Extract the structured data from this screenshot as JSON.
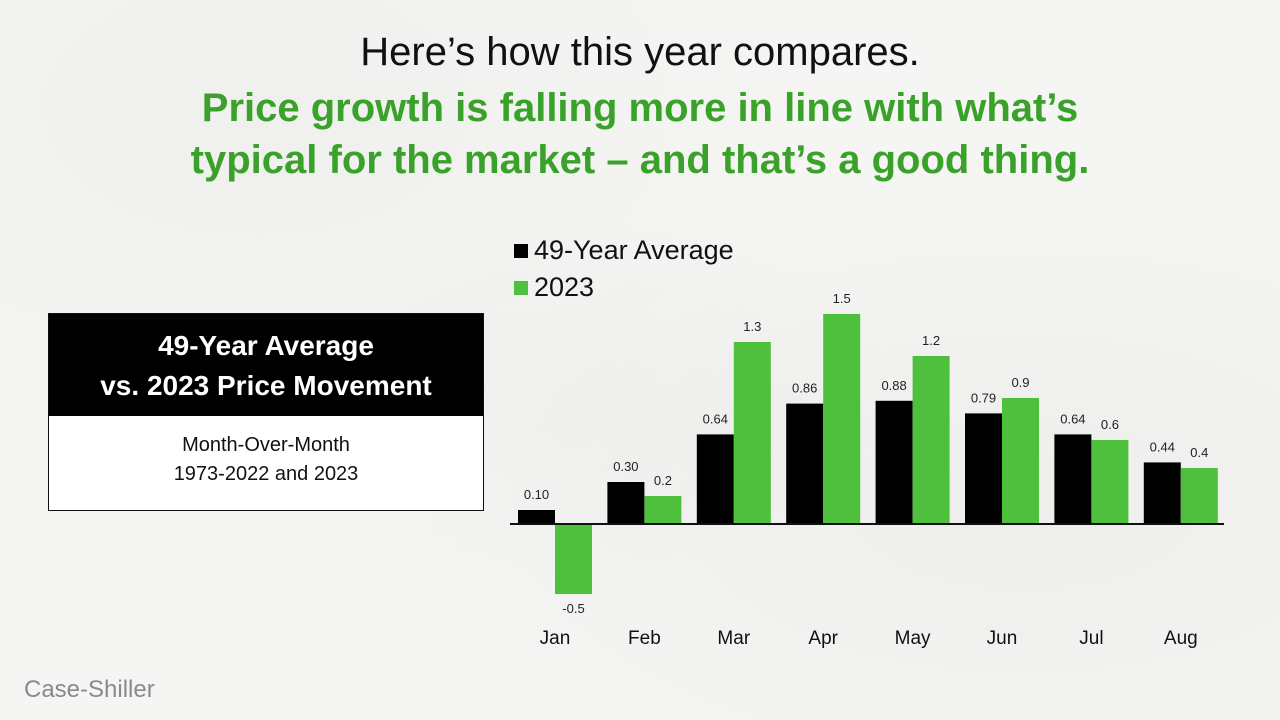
{
  "heading": {
    "line1": "Here’s how this year compares.",
    "line2": "Price growth is falling more in line with what’s",
    "line3": "typical for the market – and that’s a good thing."
  },
  "info_box": {
    "title_line1": "49-Year Average",
    "title_line2": "vs. 2023 Price Movement",
    "subtitle_line1": "Month-Over-Month",
    "subtitle_line2": "1973-2022 and 2023"
  },
  "source": "Case-Shiller",
  "colors": {
    "average": "#000000",
    "current": "#4ec03d",
    "heading_green": "#3aa12a"
  },
  "chart_data": {
    "type": "bar",
    "categories": [
      "Jan",
      "Feb",
      "Mar",
      "Apr",
      "May",
      "Jun",
      "Jul",
      "Aug"
    ],
    "series": [
      {
        "name": "49-Year Average",
        "values": [
          0.1,
          0.3,
          0.64,
          0.86,
          0.88,
          0.79,
          0.64,
          0.44
        ],
        "labels": [
          "0.10",
          "0.30",
          "0.64",
          "0.86",
          "0.88",
          "0.79",
          "0.64",
          "0.44"
        ]
      },
      {
        "name": "2023",
        "values": [
          -0.5,
          0.2,
          1.3,
          1.5,
          1.2,
          0.9,
          0.6,
          0.4
        ],
        "labels": [
          "-0.5",
          "0.2",
          "1.3",
          "1.5",
          "1.2",
          "0.9",
          "0.6",
          "0.4"
        ]
      }
    ],
    "legend_position": "top-left",
    "grid": false,
    "ylim": [
      -0.5,
      1.5
    ]
  }
}
